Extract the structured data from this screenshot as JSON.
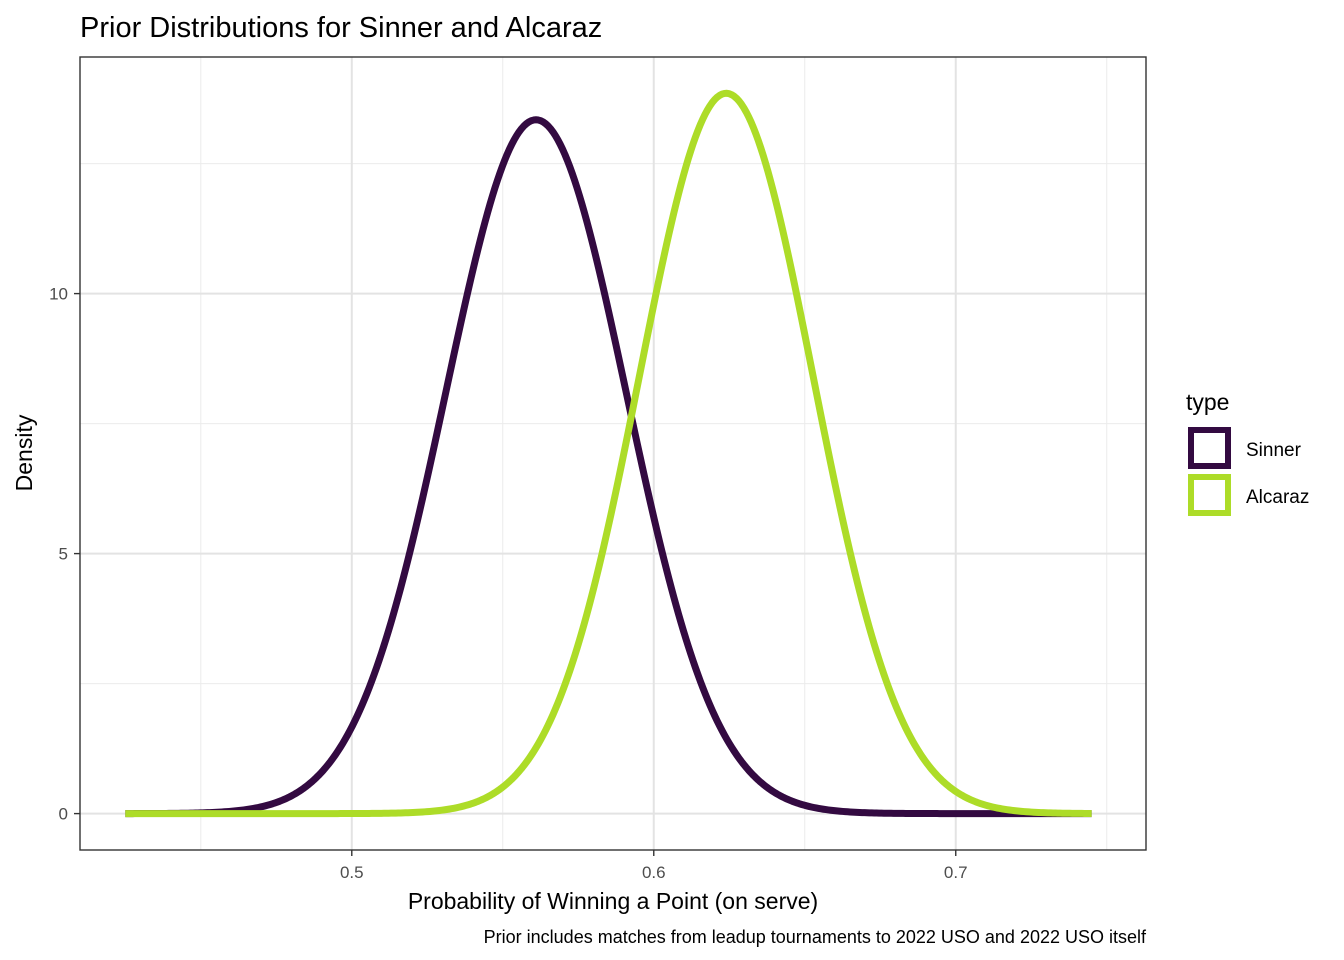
{
  "chart_data": {
    "type": "line",
    "title": "Prior Distributions for Sinner and Alcaraz",
    "xlabel": "Probability of Winning a Point (on serve)",
    "ylabel": "Density",
    "caption": "Prior includes matches from leadup tournaments to 2022 USO and 2022 USO itself",
    "xlim": [
      0.41,
      0.763
    ],
    "ylim": [
      -0.7,
      14.55
    ],
    "x_ticks": [
      0.5,
      0.6,
      0.7
    ],
    "x_tick_labels": [
      "0.5",
      "0.6",
      "0.7"
    ],
    "y_ticks": [
      0,
      5,
      10
    ],
    "y_tick_labels": [
      "0",
      "5",
      "10"
    ],
    "grid": true,
    "legend": {
      "title": "type",
      "position": "right"
    },
    "x_range": [
      0.425,
      0.745
    ],
    "series": [
      {
        "name": "Sinner",
        "distribution": "normal",
        "mean": 0.561,
        "sd": 0.0299,
        "color": "#330a41"
      },
      {
        "name": "Alcaraz",
        "distribution": "normal",
        "mean": 0.624,
        "sd": 0.0288,
        "color": "#addc28"
      }
    ]
  }
}
